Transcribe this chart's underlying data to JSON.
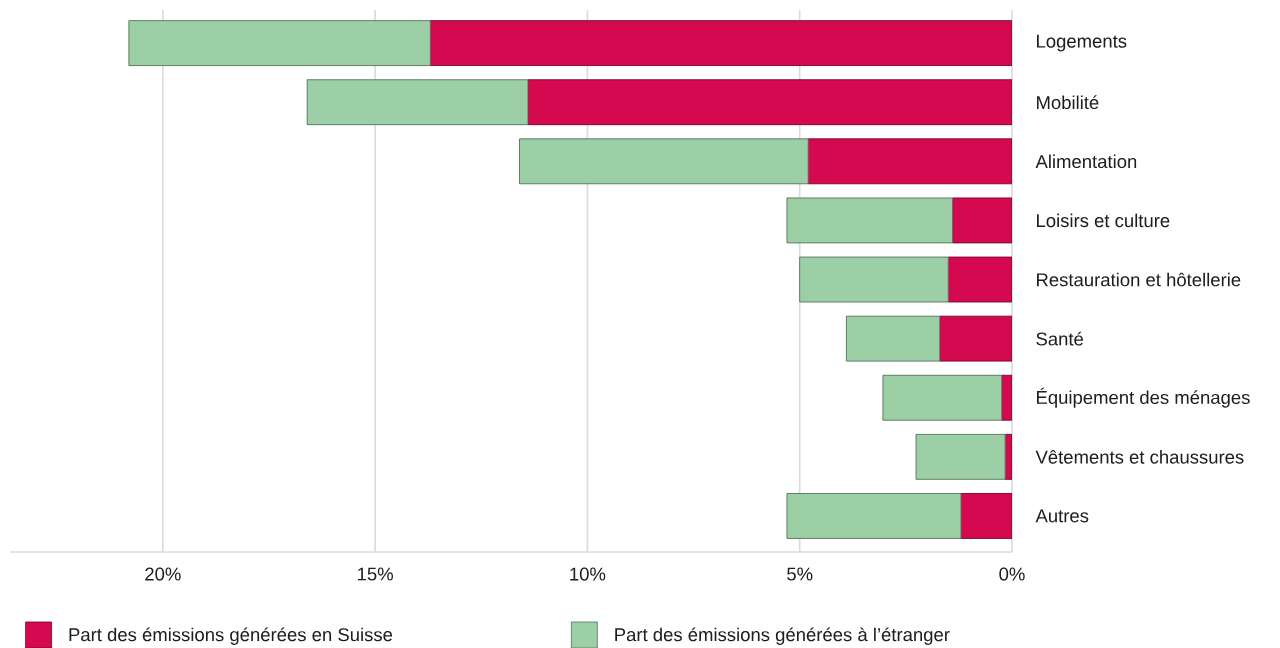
{
  "chart_data": {
    "type": "bar",
    "orientation": "horizontal",
    "stacked": true,
    "categories": [
      "Logements",
      "Mobilité",
      "Alimentation",
      "Loisirs et culture",
      "Restauration et hôtellerie",
      "Santé",
      "Équipement des ménages",
      "Vêtements et chaussures",
      "Autres"
    ],
    "series": [
      {
        "name": "Part des émissions générées en Suisse",
        "color": "#d4094f",
        "values": [
          13.7,
          11.4,
          4.8,
          1.4,
          1.5,
          1.7,
          0.24,
          0.16,
          1.2
        ]
      },
      {
        "name": "Part des émissions générées à l’étranger",
        "color": "#9ccfa6",
        "values": [
          7.1,
          5.2,
          6.8,
          3.9,
          3.5,
          2.2,
          2.8,
          2.1,
          4.1
        ]
      }
    ],
    "xlim": [
      23.6,
      0
    ],
    "xticks": [
      {
        "value": 20,
        "label": "20%"
      },
      {
        "value": 15,
        "label": "15%"
      },
      {
        "value": 10,
        "label": "10%"
      },
      {
        "value": 5,
        "label": "5%"
      },
      {
        "value": 0,
        "label": "0%"
      }
    ],
    "grid": "x",
    "legend": "bottom"
  }
}
